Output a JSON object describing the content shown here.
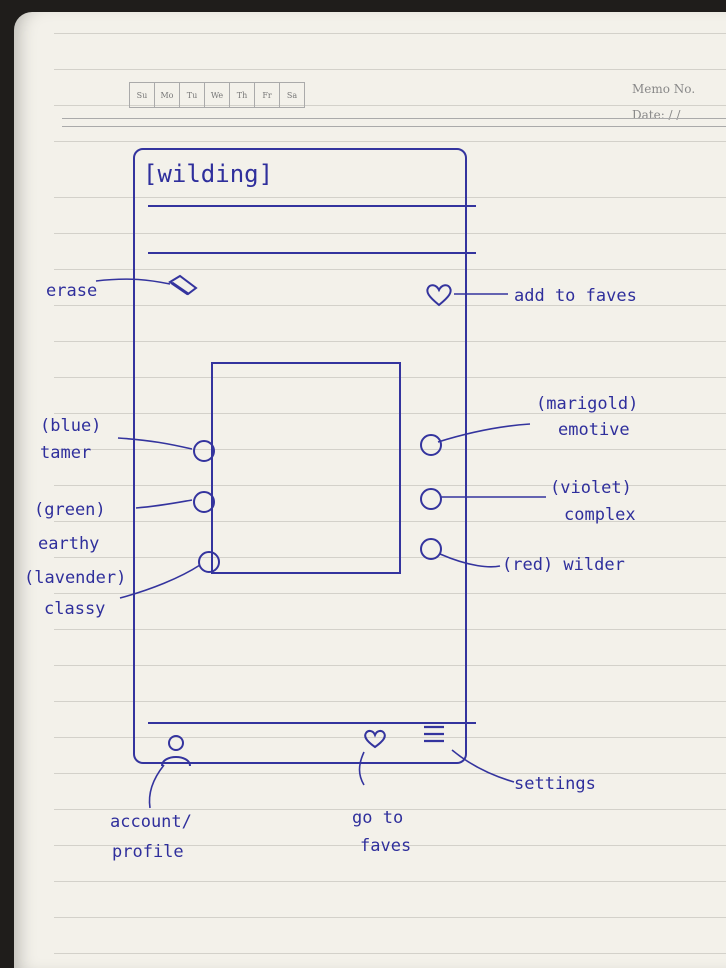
{
  "notebook": {
    "days": [
      "Su",
      "Mo",
      "Tu",
      "We",
      "Th",
      "Fr",
      "Sa"
    ],
    "memo_label": "Memo No.",
    "date_label": "Date:   /   /"
  },
  "sketch": {
    "app_title": "[wilding]",
    "annotations": {
      "erase": "erase",
      "add_to_faves": "add to faves",
      "blue_1": "(blue)",
      "blue_2": "tamer",
      "green_1": "(green)",
      "green_2": "earthy",
      "lavender_1": "(lavender)",
      "lavender_2": "classy",
      "marigold_1": "(marigold)",
      "marigold_2": "emotive",
      "violet_1": "(violet)",
      "violet_2": "complex",
      "red": "(red) wilder",
      "account_1": "account/",
      "account_2": "profile",
      "faves_1": "go to",
      "faves_2": "faves",
      "settings": "settings"
    },
    "icons": {
      "erase": "eraser-icon",
      "add_faves": "heart-icon",
      "go_faves": "heart-icon",
      "settings": "hamburger-menu-icon",
      "account": "person-icon"
    },
    "ink_color": "#2f2f9c"
  }
}
